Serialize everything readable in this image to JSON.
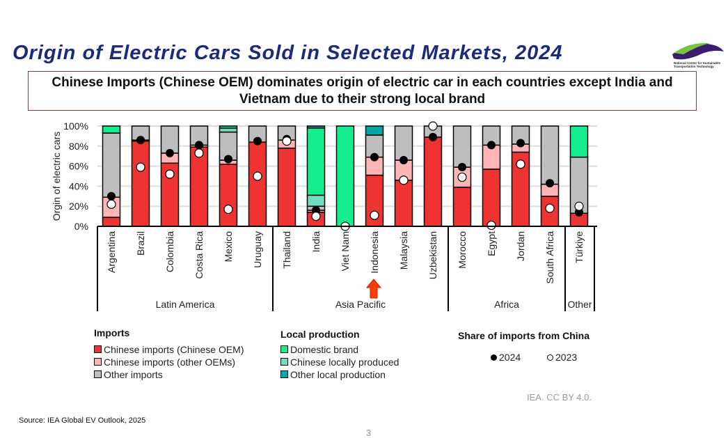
{
  "title": "Origin of Electric Cars Sold in Selected Markets, 2024",
  "subtitle": "Chinese Imports (Chinese OEM) dominates origin of electric car in each countries except India and Vietnam due to their strong local brand",
  "logo_text": "National Center for Sustainable Transportation Technology",
  "credit": "IEA. CC BY 4.0.",
  "source": "Source: IEA Global EV Outlook, 2025",
  "page_number": "3",
  "colors": {
    "chinese_oem": "#EE3333",
    "chinese_other": "#FFB5B5",
    "other_imports": "#BEBEBE",
    "domestic": "#14EE8E",
    "chinese_local": "#6EDDC0",
    "other_local": "#00A8A2"
  },
  "legend": {
    "imports_title": "Imports",
    "local_title": "Local production",
    "share_title": "Share of imports from China",
    "items": [
      "Chinese imports (Chinese OEM)",
      "Chinese imports (other OEMs)",
      "Other imports",
      "Domestic brand",
      "Chinese locally produced",
      "Other local production"
    ],
    "dot_2024": "2024",
    "dot_2023": "2023"
  },
  "chart_data": {
    "type": "bar",
    "stacked": true,
    "ylabel": "Orgin of electric cars",
    "ylim": [
      0,
      100
    ],
    "yticks": [
      "0%",
      "20%",
      "40%",
      "60%",
      "80%",
      "100%"
    ],
    "grid": true,
    "categories": [
      "Argentina",
      "Brazil",
      "Colombia",
      "Costa Rica",
      "Mexico",
      "Uruguay",
      "Thailand",
      "India",
      "Viet Nam",
      "Indonesia",
      "Malaysia",
      "Uzbekistan",
      "Morocco",
      "Egypt",
      "Jordan",
      "South Africa",
      "Türkiye"
    ],
    "groups": [
      {
        "label": "Latin America",
        "count": 6
      },
      {
        "label": "Asia Pacific",
        "count": 6
      },
      {
        "label": "Africa",
        "count": 4
      },
      {
        "label": "Other",
        "count": 1
      }
    ],
    "highlight_category": "Indonesia",
    "series": [
      {
        "name": "Chinese imports (Chinese OEM)",
        "key": "chinese_oem",
        "values": [
          9,
          85,
          63,
          79,
          62,
          84,
          78,
          14,
          0,
          51,
          46,
          89,
          39,
          57,
          74,
          30,
          13
        ]
      },
      {
        "name": "Chinese imports (other OEMs)",
        "key": "chinese_other",
        "values": [
          20,
          1,
          10,
          2,
          4,
          0,
          8,
          2,
          0,
          18,
          20,
          0,
          20,
          24,
          8,
          12,
          0
        ]
      },
      {
        "name": "Other imports",
        "key": "other_imports",
        "values": [
          64,
          14,
          27,
          19,
          28,
          16,
          14,
          4,
          0,
          22,
          34,
          11,
          41,
          19,
          18,
          58,
          56
        ]
      },
      {
        "name": "Chinese locally produced",
        "key": "chinese_local",
        "values": [
          0,
          0,
          0,
          0,
          4,
          0,
          0,
          11,
          0,
          0,
          0,
          0,
          0,
          0,
          0,
          0,
          0
        ]
      },
      {
        "name": "Domestic brand",
        "key": "domestic",
        "values": [
          7,
          0,
          0,
          0,
          2,
          0,
          0,
          67,
          100,
          0,
          0,
          0,
          0,
          0,
          0,
          0,
          31
        ]
      },
      {
        "name": "Other local production",
        "key": "other_local",
        "values": [
          0,
          0,
          0,
          0,
          0,
          0,
          0,
          2,
          0,
          9,
          0,
          0,
          0,
          0,
          0,
          0,
          0
        ]
      }
    ],
    "share_from_china": {
      "2024": [
        30,
        86,
        73,
        81,
        67,
        85,
        87,
        16,
        0,
        69,
        66,
        89,
        59,
        81,
        83,
        43,
        14
      ],
      "2023": [
        22,
        59,
        52,
        73,
        17,
        50,
        85,
        10,
        0,
        11,
        46,
        100,
        49,
        1,
        62,
        18,
        20
      ]
    }
  }
}
